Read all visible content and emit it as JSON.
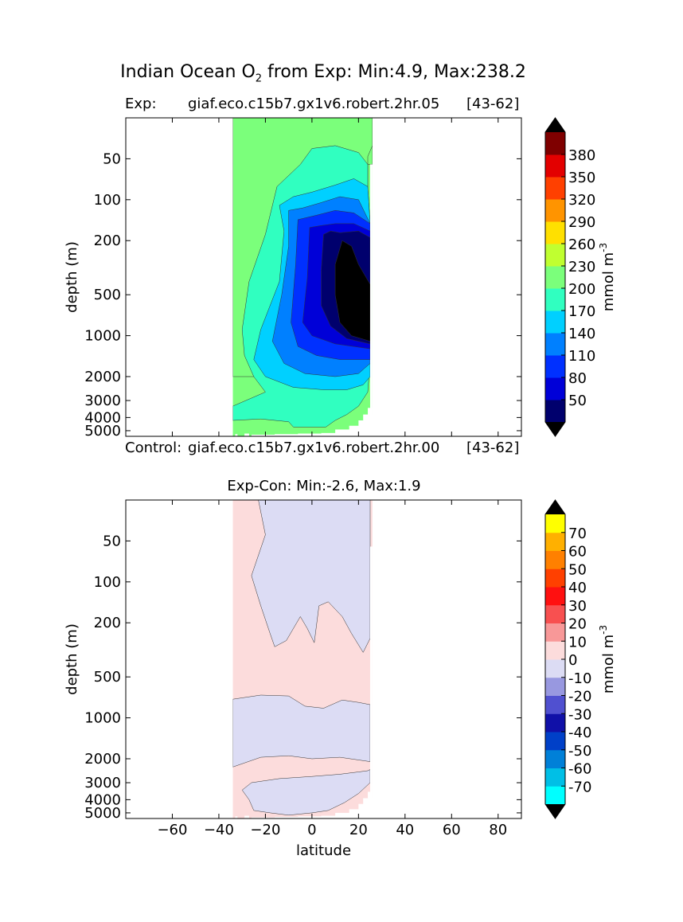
{
  "figure": {
    "suptitle_prefix": "Indian Ocean O",
    "suptitle_sub": "2",
    "suptitle_suffix": " from Exp: Min:4.9, Max:238.2",
    "top_title_left": "Exp:",
    "top_title_center": "giaf.eco.c15b7.gx1v6.robert.2hr.05",
    "top_title_right": "[43-62]",
    "control_left": "Control:",
    "control_center": "giaf.eco.c15b7.gx1v6.robert.2hr.00",
    "control_right": "[43-62]",
    "bottom_title": "Exp-Con: Min:-2.6, Max:1.9"
  },
  "chart_data": [
    {
      "type": "heatmap",
      "title": "Indian Ocean O2 from Exp: Min:4.9, Max:238.2",
      "subtitle": "Exp: giaf.eco.c15b7.gx1v6.robert.2hr.05 [43-62]",
      "xlabel": "",
      "ylabel": "depth (m)",
      "xlim": [
        -80,
        90
      ],
      "ylim": [
        5500,
        25
      ],
      "y_scale": "log",
      "yticks": [
        50,
        100,
        200,
        500,
        1000,
        2000,
        3000,
        4000,
        5000
      ],
      "data_range_latitude": [
        -34,
        26
      ],
      "min": 4.9,
      "max": 238.2,
      "colorbar": {
        "label": "mmol m",
        "label_exponent": "-3",
        "levels": [
          20,
          50,
          80,
          110,
          140,
          170,
          200,
          230,
          260,
          290,
          320,
          350,
          380,
          410
        ],
        "tick_labels": [
          "50",
          "80",
          "110",
          "140",
          "170",
          "200",
          "230",
          "260",
          "290",
          "320",
          "350",
          "380"
        ],
        "colors": [
          "#00006d",
          "#0000d8",
          "#0030ff",
          "#0080ff",
          "#00d0ff",
          "#30ffc0",
          "#7bff7b",
          "#c0ff30",
          "#ffe000",
          "#ff9400",
          "#ff4000",
          "#e30000",
          "#7f0000"
        ],
        "under_color": "#000000",
        "over_color": "#000000"
      },
      "approximate_regions": [
        {
          "latitude": [
            -34,
            -32
          ],
          "depth": [
            25,
            100
          ],
          "value_range": [
            230,
            260
          ]
        },
        {
          "latitude": [
            -34,
            26
          ],
          "depth": [
            25,
            2000
          ],
          "value_range": [
            200,
            230
          ]
        },
        {
          "latitude": [
            -20,
            26
          ],
          "depth": [
            60,
            3500
          ],
          "value_range": [
            170,
            200
          ]
        },
        {
          "latitude": [
            -15,
            25
          ],
          "depth": [
            100,
            3000
          ],
          "value_range": [
            140,
            170
          ]
        },
        {
          "latitude": [
            -12,
            25
          ],
          "depth": [
            120,
            2000
          ],
          "value_range": [
            110,
            140
          ]
        },
        {
          "latitude": [
            -8,
            25
          ],
          "depth": [
            130,
            1600
          ],
          "value_range": [
            80,
            110
          ]
        },
        {
          "latitude": [
            -2,
            25
          ],
          "depth": [
            140,
            1300
          ],
          "value_range": [
            50,
            80
          ]
        },
        {
          "latitude": [
            2,
            25
          ],
          "depth": [
            170,
            1200
          ],
          "value_range": [
            20,
            50
          ]
        },
        {
          "latitude": [
            8,
            25
          ],
          "depth": [
            220,
            1100
          ],
          "value_range": [
            4.9,
            20
          ]
        }
      ]
    },
    {
      "type": "heatmap",
      "title": "Exp-Con: Min:-2.6, Max:1.9",
      "subtitle": "Control: giaf.eco.c15b7.gx1v6.robert.2hr.00 [43-62]",
      "xlabel": "latitude",
      "ylabel": "depth (m)",
      "xlim": [
        -80,
        90
      ],
      "ylim": [
        5500,
        25
      ],
      "y_scale": "log",
      "xticks": [
        -60,
        -40,
        -20,
        0,
        20,
        40,
        60,
        80
      ],
      "yticks": [
        50,
        100,
        200,
        500,
        1000,
        2000,
        3000,
        4000,
        5000
      ],
      "data_range_latitude": [
        -34,
        26
      ],
      "min": -2.6,
      "max": 1.9,
      "colorbar": {
        "label": "mmol m",
        "label_exponent": "-3",
        "levels": [
          -80,
          -70,
          -60,
          -50,
          -40,
          -30,
          -20,
          -10,
          0,
          10,
          20,
          30,
          40,
          50,
          60,
          70,
          80
        ],
        "tick_labels": [
          "-70",
          "-60",
          "-50",
          "-40",
          "-30",
          "-20",
          "-10",
          "0",
          "10",
          "20",
          "30",
          "40",
          "50",
          "60",
          "70"
        ],
        "colors": [
          "#00ffff",
          "#00bfe6",
          "#0080d8",
          "#0040c8",
          "#1010a8",
          "#5050d0",
          "#9898e0",
          "#dcdcf4",
          "#fcdcdc",
          "#f89898",
          "#f85050",
          "#ff1010",
          "#ff4000",
          "#ff8000",
          "#ffb000",
          "#ffff00"
        ],
        "under_color": "#000000",
        "over_color": "#000000"
      },
      "approximate_regions": [
        {
          "latitude": [
            -34,
            26
          ],
          "depth": [
            25,
            5500
          ],
          "value_range": [
            0,
            10
          ]
        },
        {
          "latitude": [
            -25,
            25
          ],
          "depth": [
            25,
            350
          ],
          "value_range": [
            -10,
            0
          ]
        },
        {
          "latitude": [
            -34,
            25
          ],
          "depth": [
            700,
            2300
          ],
          "value_range": [
            -10,
            0
          ]
        },
        {
          "latitude": [
            -30,
            20
          ],
          "depth": [
            2500,
            5000
          ],
          "value_range": [
            -10,
            0
          ]
        }
      ]
    }
  ]
}
